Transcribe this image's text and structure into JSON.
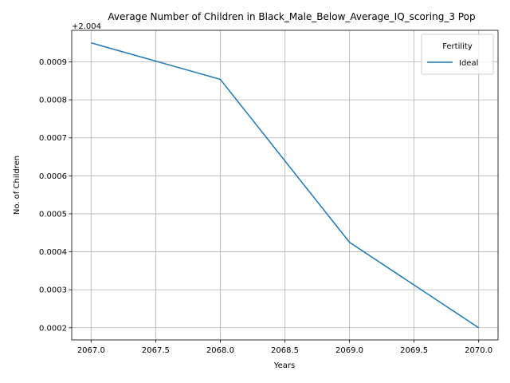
{
  "chart_data": {
    "type": "line",
    "title": "Average Number of Children in Black_Male_Below_Average_IQ_scoring_3 Pop",
    "xlabel": "Years",
    "ylabel": "No. of Children",
    "offset_label": "+2.004",
    "x_ticks": [
      "2067.0",
      "2067.5",
      "2068.0",
      "2068.5",
      "2069.0",
      "2069.5",
      "2070.0"
    ],
    "y_ticks": [
      "0.0002",
      "0.0003",
      "0.0004",
      "0.0005",
      "0.0006",
      "0.0007",
      "0.0008",
      "0.0009"
    ],
    "xlim": [
      2066.85,
      2070.15
    ],
    "ylim": [
      0.000168,
      0.000983
    ],
    "grid": true,
    "legend": {
      "title": "Fertility",
      "placement": "top-right"
    },
    "series": [
      {
        "name": "Ideal",
        "color": "#1f77b4",
        "x": [
          2067,
          2068,
          2069,
          2070
        ],
        "y": [
          0.00095,
          0.000854,
          0.000425,
          0.0002
        ]
      }
    ]
  }
}
